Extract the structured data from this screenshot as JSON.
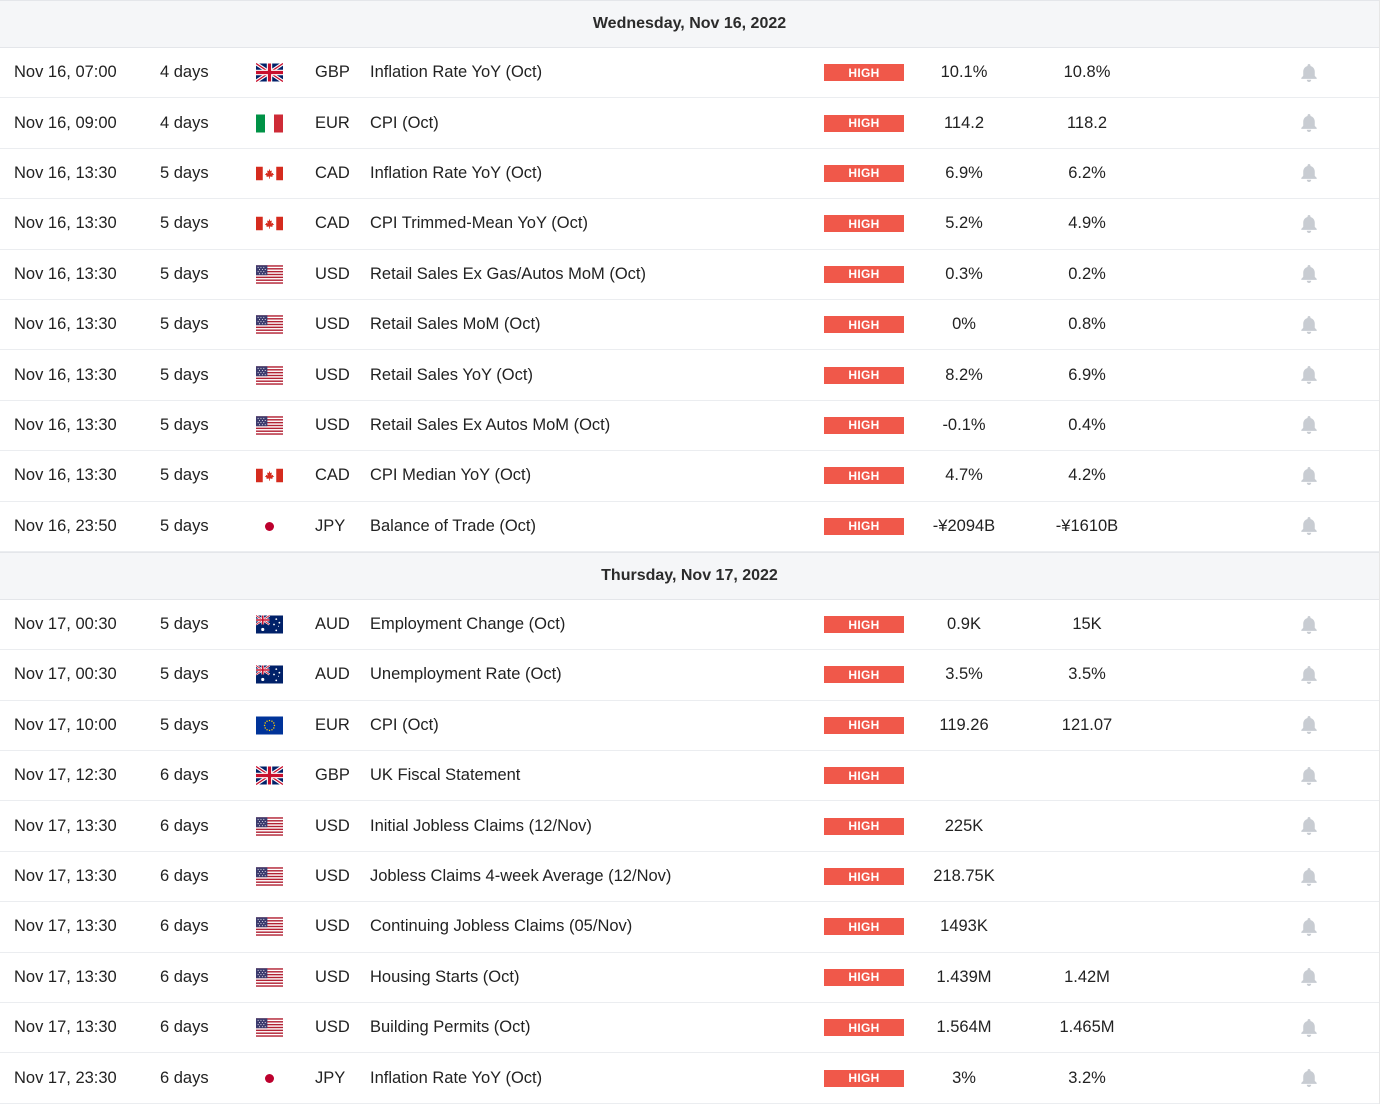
{
  "impact_label": "HIGH",
  "colors": {
    "impact_high": "#f0584a",
    "day_header_bg": "#f5f6f8",
    "bell_icon": "#c8ccd2"
  },
  "days": [
    {
      "title": "Wednesday, Nov 16, 2022",
      "events": [
        {
          "time": "Nov 16, 07:00",
          "remaining": "4 days",
          "flag": "gb",
          "currency": "GBP",
          "event": "Inflation Rate YoY (Oct)",
          "actual": "10.1%",
          "forecast": "10.8%"
        },
        {
          "time": "Nov 16, 09:00",
          "remaining": "4 days",
          "flag": "it",
          "currency": "EUR",
          "event": "CPI (Oct)",
          "actual": "114.2",
          "forecast": "118.2"
        },
        {
          "time": "Nov 16, 13:30",
          "remaining": "5 days",
          "flag": "ca",
          "currency": "CAD",
          "event": "Inflation Rate YoY (Oct)",
          "actual": "6.9%",
          "forecast": "6.2%"
        },
        {
          "time": "Nov 16, 13:30",
          "remaining": "5 days",
          "flag": "ca",
          "currency": "CAD",
          "event": "CPI Trimmed-Mean YoY (Oct)",
          "actual": "5.2%",
          "forecast": "4.9%"
        },
        {
          "time": "Nov 16, 13:30",
          "remaining": "5 days",
          "flag": "us",
          "currency": "USD",
          "event": "Retail Sales Ex Gas/Autos MoM (Oct)",
          "actual": "0.3%",
          "forecast": "0.2%"
        },
        {
          "time": "Nov 16, 13:30",
          "remaining": "5 days",
          "flag": "us",
          "currency": "USD",
          "event": "Retail Sales MoM (Oct)",
          "actual": "0%",
          "forecast": "0.8%"
        },
        {
          "time": "Nov 16, 13:30",
          "remaining": "5 days",
          "flag": "us",
          "currency": "USD",
          "event": "Retail Sales YoY (Oct)",
          "actual": "8.2%",
          "forecast": "6.9%"
        },
        {
          "time": "Nov 16, 13:30",
          "remaining": "5 days",
          "flag": "us",
          "currency": "USD",
          "event": "Retail Sales Ex Autos MoM (Oct)",
          "actual": "-0.1%",
          "forecast": "0.4%"
        },
        {
          "time": "Nov 16, 13:30",
          "remaining": "5 days",
          "flag": "ca",
          "currency": "CAD",
          "event": "CPI Median YoY (Oct)",
          "actual": "4.7%",
          "forecast": "4.2%"
        },
        {
          "time": "Nov 16, 23:50",
          "remaining": "5 days",
          "flag": "jp",
          "currency": "JPY",
          "event": "Balance of Trade (Oct)",
          "actual": "-¥2094B",
          "forecast": "-¥1610B"
        }
      ]
    },
    {
      "title": "Thursday, Nov 17, 2022",
      "events": [
        {
          "time": "Nov 17, 00:30",
          "remaining": "5 days",
          "flag": "au",
          "currency": "AUD",
          "event": "Employment Change (Oct)",
          "actual": "0.9K",
          "forecast": "15K"
        },
        {
          "time": "Nov 17, 00:30",
          "remaining": "5 days",
          "flag": "au",
          "currency": "AUD",
          "event": "Unemployment Rate (Oct)",
          "actual": "3.5%",
          "forecast": "3.5%"
        },
        {
          "time": "Nov 17, 10:00",
          "remaining": "5 days",
          "flag": "eu",
          "currency": "EUR",
          "event": "CPI (Oct)",
          "actual": "119.26",
          "forecast": "121.07"
        },
        {
          "time": "Nov 17, 12:30",
          "remaining": "6 days",
          "flag": "gb",
          "currency": "GBP",
          "event": "UK Fiscal Statement",
          "actual": "",
          "forecast": ""
        },
        {
          "time": "Nov 17, 13:30",
          "remaining": "6 days",
          "flag": "us",
          "currency": "USD",
          "event": "Initial Jobless Claims (12/Nov)",
          "actual": "225K",
          "forecast": ""
        },
        {
          "time": "Nov 17, 13:30",
          "remaining": "6 days",
          "flag": "us",
          "currency": "USD",
          "event": "Jobless Claims 4-week Average (12/Nov)",
          "actual": "218.75K",
          "forecast": ""
        },
        {
          "time": "Nov 17, 13:30",
          "remaining": "6 days",
          "flag": "us",
          "currency": "USD",
          "event": "Continuing Jobless Claims (05/Nov)",
          "actual": "1493K",
          "forecast": ""
        },
        {
          "time": "Nov 17, 13:30",
          "remaining": "6 days",
          "flag": "us",
          "currency": "USD",
          "event": "Housing Starts (Oct)",
          "actual": "1.439M",
          "forecast": "1.42M"
        },
        {
          "time": "Nov 17, 13:30",
          "remaining": "6 days",
          "flag": "us",
          "currency": "USD",
          "event": "Building Permits (Oct)",
          "actual": "1.564M",
          "forecast": "1.465M"
        },
        {
          "time": "Nov 17, 23:30",
          "remaining": "6 days",
          "flag": "jp",
          "currency": "JPY",
          "event": "Inflation Rate YoY (Oct)",
          "actual": "3%",
          "forecast": "3.2%"
        }
      ]
    }
  ]
}
